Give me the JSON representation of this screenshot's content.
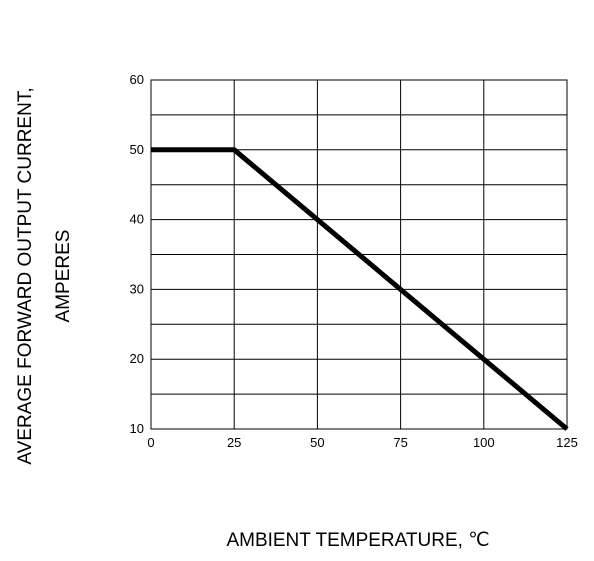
{
  "chart_data": {
    "type": "line",
    "xlabel": "AMBIENT  TEMPERATURE,  ℃",
    "ylabel_line1": "AVERAGE FORWARD OUTPUT CURRENT,",
    "ylabel_line2": "AMPERES",
    "xlim": [
      0,
      125
    ],
    "ylim": [
      10,
      60
    ],
    "x_ticks": [
      0,
      25,
      50,
      75,
      100,
      125
    ],
    "y_ticks": [
      10,
      20,
      30,
      40,
      50,
      60
    ],
    "x_grid": [
      0,
      25,
      50,
      75,
      100,
      125
    ],
    "y_grid": [
      10,
      15,
      20,
      25,
      30,
      35,
      40,
      45,
      50,
      55,
      60
    ],
    "grid": true,
    "series": [
      {
        "x": [
          0,
          25,
          125
        ],
        "y": [
          50,
          50,
          10
        ]
      }
    ],
    "colors": {
      "line": "#000000",
      "grid": "#000000"
    }
  }
}
